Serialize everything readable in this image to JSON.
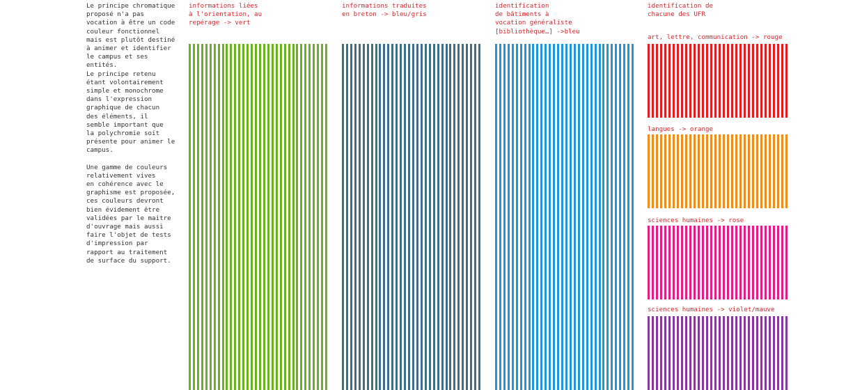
{
  "intro": {
    "paragraph_1": "Le principe chromatique\nproposé n'a pas\nvocation à être un code\ncouleur fonctionnel\nmais est plutôt destiné\nà animer et identifier\nle campus et ses\nentités.\nLe principe retenu\nétant volontairement\nsimple et monochrome\ndans l'expression\ngraphique de chacun\ndes  éléments, il\nsemble important que\nla polychromie soit\nprésente pour animer le\ncampus.",
    "paragraph_2": "Une gamme de couleurs\nrelativement vives\nen cohérence avec le\ngraphisme est proposée,\nces couleurs devront\nbien évidement être\nvalidées par le maitre\nd'ouvrage mais aussi\nfaire l'objet de tests\nd'impression par\nrapport au traitement\nde surface du support."
  },
  "caption_color": "#d8262b",
  "columns": [
    {
      "caption": "informations liées\nà l'orientation, au\nrepérage -> vert",
      "color": "#6ab023"
    },
    {
      "caption": "informations traduites\nen breton -> bleu/gris",
      "color": "#3e6e8b"
    },
    {
      "caption": "identification\nde bâtiments à\nvocation généraliste\n[bibliothèque…] ->bleu",
      "color": "#1e95dc"
    }
  ],
  "ufr": {
    "heading": "identification de\nchacune des UFR",
    "blocks": [
      {
        "caption": "art, lettre, communication -> rouge",
        "color": "#e31d1f"
      },
      {
        "caption": "langues -> orange",
        "color": "#ee8d1c"
      },
      {
        "caption": "sciences humaines -> rose",
        "color": "#e41b88"
      },
      {
        "caption": "sciences humaines -> violet/mauve",
        "color": "#86389b"
      }
    ]
  }
}
